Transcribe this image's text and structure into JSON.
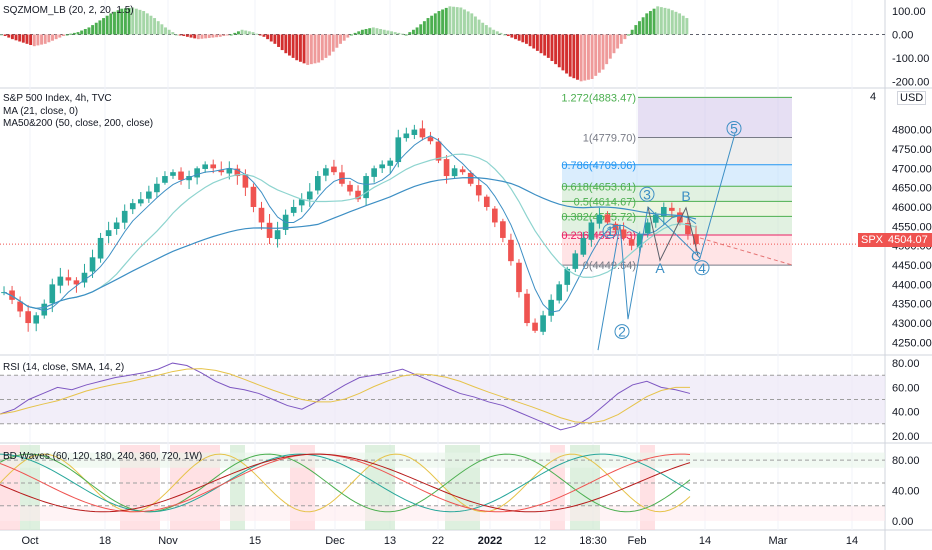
{
  "panes": {
    "sqzmom": {
      "title": "SQZMOM_LB (20, 2, 20, 1.5)",
      "ticks": [
        "100.00",
        "0.00",
        "-100.00",
        "-200.00"
      ]
    },
    "main": {
      "title": "S&P 500 Index, 4h, TVC",
      "indicators": [
        "MA (21, close, 0)",
        "MA50&200 (50, close, 200, close)"
      ],
      "currency": "USD",
      "ticks": [
        "4800.00",
        "4750.00",
        "4700.00",
        "4650.00",
        "4600.00",
        "4550.00",
        "4500.00",
        "4450.00",
        "4400.00",
        "4350.00",
        "4300.00",
        "4250.00"
      ],
      "top_tick": "4",
      "last_price": "4504.07",
      "symbol": "SPX"
    },
    "rsi": {
      "title": "RSI (14, close, SMA, 14, 2)",
      "ticks": [
        "80.00",
        "60.00",
        "40.00",
        "20.00"
      ]
    },
    "waves": {
      "title": "BD Waves (60, 120, 180, 240, 360, 720, 1W)",
      "ticks": [
        "80.00",
        "40.00",
        "0.00"
      ]
    }
  },
  "x_axis": [
    "Oct",
    "18",
    "Nov",
    "15",
    "Dec",
    "13",
    "22",
    "2022",
    "12",
    "18:30",
    "Feb",
    "14",
    "Mar",
    "14"
  ],
  "fib_levels": [
    {
      "ratio": "1.272",
      "price": "4883.47",
      "label": "1.272(4883.47)",
      "color": "#4caf50"
    },
    {
      "ratio": "1",
      "price": "4779.70",
      "label": "1(4779.70)",
      "color": "#787b86"
    },
    {
      "ratio": "0.786",
      "price": "4709.06",
      "label": "0.786(4709.06)",
      "color": "#2196f3"
    },
    {
      "ratio": "0.618",
      "price": "4653.61",
      "label": "0.618(4653.61)",
      "color": "#4caf50"
    },
    {
      "ratio": "0.5",
      "price": "4614.67",
      "label": "0.5(4614.67)",
      "color": "#4caf50"
    },
    {
      "ratio": "0.382",
      "price": "4575.72",
      "label": "0.382(4575.72)",
      "color": "#4caf50"
    },
    {
      "ratio": "0.236",
      "price": "4527.53",
      "label": "0.236(4527.53)",
      "color": "#e91e63"
    },
    {
      "ratio": "0",
      "price": "4449.64",
      "label": "0(4449.64)",
      "color": "#787b86"
    }
  ],
  "wave_labels": [
    "1",
    "2",
    "3",
    "4",
    "5",
    "A",
    "B",
    "C"
  ],
  "colors": {
    "up": "#26a69a",
    "down": "#ef5350",
    "sqz_up": "#4caf50",
    "sqz_down": "#d32f2f",
    "ma21": "#3d8fc4",
    "ma50": "#8ed4cf",
    "ma200": "#3d8fc4",
    "rsi": "#7e57c2",
    "rsi_sma": "#e6c34a"
  },
  "chart_data": [
    {
      "type": "bar",
      "title": "SQZMOM_LB (20, 2, 20, 1.5)",
      "ylim": [
        -220,
        130
      ],
      "series": [
        {
          "values": [
            0,
            -20,
            -35,
            -50,
            -40,
            -20,
            0,
            10,
            30,
            60,
            90,
            110,
            115,
            100,
            70,
            30,
            0,
            -10,
            -20,
            -15,
            -10,
            0,
            20,
            10,
            -10,
            -40,
            -80,
            -110,
            -130,
            -120,
            -90,
            -40,
            0,
            20,
            30,
            20,
            10,
            0,
            30,
            70,
            100,
            120,
            115,
            90,
            50,
            20,
            0,
            -20,
            -40,
            -70,
            -100,
            -140,
            -180,
            -200,
            -190,
            -150,
            -80,
            -20,
            40,
            90,
            120,
            110,
            90,
            60
          ]
        }
      ]
    },
    {
      "type": "candlestick",
      "title": "S&P 500 Index, 4h, TVC",
      "ylim": [
        4220,
        4905
      ],
      "series": [
        {
          "name": "SPX",
          "values": [
            4380,
            4360,
            4330,
            4300,
            4320,
            4350,
            4400,
            4420,
            4410,
            4400,
            4430,
            4470,
            4520,
            4540,
            4560,
            4590,
            4610,
            4620,
            4640,
            4660,
            4680,
            4690,
            4670,
            4680,
            4700,
            4710,
            4700,
            4690,
            4700,
            4680,
            4650,
            4600,
            4560,
            4520,
            4540,
            4580,
            4600,
            4620,
            4640,
            4680,
            4700,
            4690,
            4660,
            4640,
            4620,
            4680,
            4700,
            4710,
            4720,
            4780,
            4790,
            4800,
            4780,
            4770,
            4720,
            4680,
            4700,
            4690,
            4660,
            4630,
            4600,
            4560,
            4520,
            4460,
            4380,
            4300,
            4280,
            4320,
            4360,
            4400,
            4440,
            4480,
            4520,
            4560,
            4580,
            4560,
            4540,
            4520,
            4500,
            4530,
            4560,
            4580,
            4600,
            4590,
            4560,
            4530,
            4504
          ]
        }
      ]
    },
    {
      "type": "line",
      "title": "RSI (14, close, SMA, 14, 2)",
      "ylim": [
        15,
        85
      ],
      "series": [
        {
          "name": "RSI",
          "values": [
            38,
            42,
            50,
            55,
            60,
            58,
            62,
            65,
            68,
            70,
            72,
            75,
            80,
            78,
            72,
            65,
            60,
            58,
            55,
            50,
            45,
            42,
            48,
            55,
            62,
            68,
            70,
            72,
            75,
            70,
            65,
            60,
            55,
            52,
            48,
            45,
            40,
            35,
            30,
            25,
            28,
            35,
            45,
            55,
            62,
            65,
            60,
            58,
            55
          ]
        }
      ]
    }
  ]
}
